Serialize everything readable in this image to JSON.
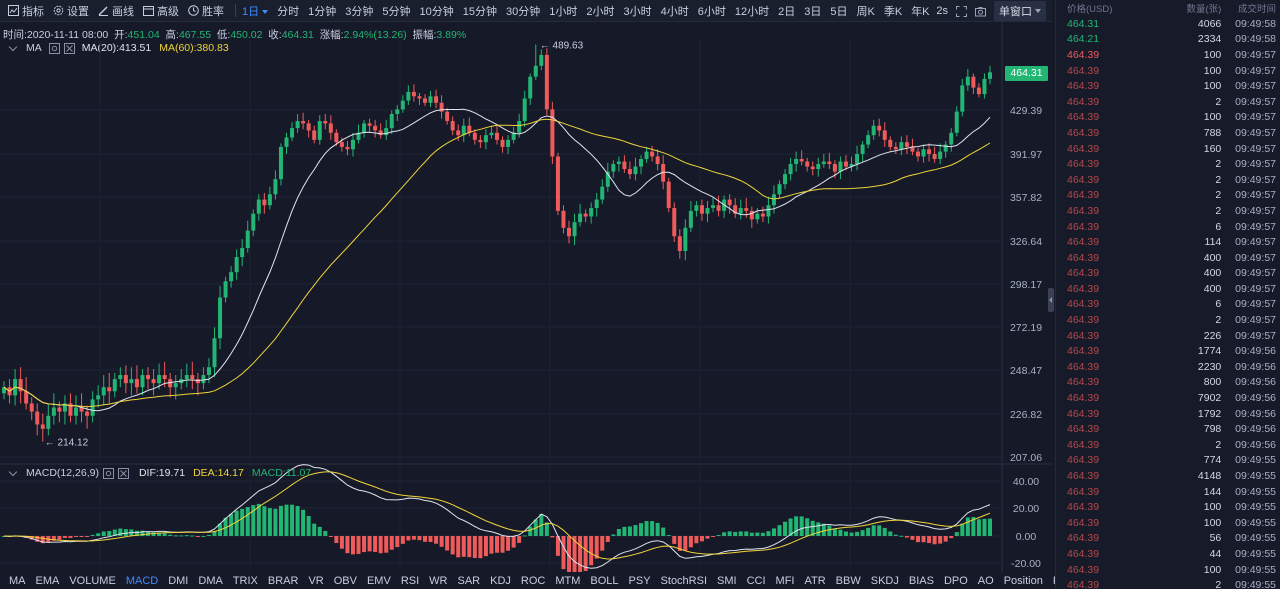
{
  "toolbar": {
    "tools": [
      {
        "label": "指标",
        "icon": "indicator-icon"
      },
      {
        "label": "设置",
        "icon": "gear-icon"
      },
      {
        "label": "画线",
        "icon": "pencil-icon"
      },
      {
        "label": "高级",
        "icon": "advanced-chart-icon"
      },
      {
        "label": "胜率",
        "icon": "win-rate-icon"
      }
    ],
    "periods": [
      "1日",
      "分时",
      "1分钟",
      "3分钟",
      "5分钟",
      "10分钟",
      "15分钟",
      "30分钟",
      "1小时",
      "2小时",
      "3小时",
      "4小时",
      "6小时",
      "12小时",
      "2日",
      "3日",
      "5日",
      "周K",
      "季K",
      "年K"
    ],
    "active_period": "1日",
    "refresh_interval": "2s",
    "window_mode": "单窗口"
  },
  "info": {
    "time_label": "时间:",
    "time": "2020-11-11 08:00",
    "open_label": "开:",
    "open": "451.04",
    "high_label": "高:",
    "high": "467.55",
    "low_label": "低:",
    "low": "450.02",
    "close_label": "收:",
    "close": "464.31",
    "change_label": "涨幅:",
    "change": "2.94%(13.26)",
    "amplitude_label": "振幅:",
    "amplitude": "3.89%"
  },
  "ma_legend": {
    "name": "MA",
    "ma20": "MA(20):413.51",
    "ma60": "MA(60):380.83"
  },
  "macd_legend": {
    "name": "MACD(12,26,9)",
    "dif": "DIF:19.71",
    "dea": "DEA:14.17",
    "macd": "MACD:11.07"
  },
  "price_axis": [
    "464.31",
    "429.39",
    "391.97",
    "357.82",
    "326.64",
    "298.17",
    "272.19",
    "248.47",
    "226.82",
    "207.06"
  ],
  "current_price": "464.31",
  "macd_axis": [
    "40.00",
    "20.00",
    "0.00",
    "-20.00"
  ],
  "annotations": {
    "high": "489.63",
    "low": "214.12"
  },
  "indicator_tabs": [
    "MA",
    "EMA",
    "VOLUME",
    "MACD",
    "DMI",
    "DMA",
    "TRIX",
    "BRAR",
    "VR",
    "OBV",
    "EMV",
    "RSI",
    "WR",
    "SAR",
    "KDJ",
    "ROC",
    "MTM",
    "BOLL",
    "PSY",
    "StochRSI",
    "SMI",
    "CCI",
    "MFI",
    "ATR",
    "BBW",
    "SKDJ",
    "BIAS",
    "DPO",
    "AO",
    "Position",
    "Fundflow"
  ],
  "active_indicator": "MACD",
  "colors": {
    "up": "#22b573",
    "down": "#ef5a5a",
    "ma20": "#e1e4ee",
    "ma60": "#f0d43a",
    "accent": "#3d8bff",
    "bg": "#161a28"
  },
  "trades": {
    "headers": {
      "price": "价格(USD)",
      "qty": "数量(张)",
      "time": "成交时间"
    },
    "rows": [
      {
        "price": "464.31",
        "qty": "4066",
        "time": "09:49:58",
        "side": "up"
      },
      {
        "price": "464.21",
        "qty": "2334",
        "time": "09:49:58",
        "side": "up"
      },
      {
        "price": "464.39",
        "qty": "100",
        "time": "09:49:57",
        "side": "down"
      },
      {
        "price": "464.39",
        "qty": "100",
        "time": "09:49:57",
        "side": "down"
      },
      {
        "price": "464.39",
        "qty": "100",
        "time": "09:49:57",
        "side": "down"
      },
      {
        "price": "464.39",
        "qty": "2",
        "time": "09:49:57",
        "side": "down"
      },
      {
        "price": "464.39",
        "qty": "100",
        "time": "09:49:57",
        "side": "down"
      },
      {
        "price": "464.39",
        "qty": "788",
        "time": "09:49:57",
        "side": "down"
      },
      {
        "price": "464.39",
        "qty": "160",
        "time": "09:49:57",
        "side": "down"
      },
      {
        "price": "464.39",
        "qty": "2",
        "time": "09:49:57",
        "side": "down"
      },
      {
        "price": "464.39",
        "qty": "2",
        "time": "09:49:57",
        "side": "down"
      },
      {
        "price": "464.39",
        "qty": "2",
        "time": "09:49:57",
        "side": "down"
      },
      {
        "price": "464.39",
        "qty": "2",
        "time": "09:49:57",
        "side": "down"
      },
      {
        "price": "464.39",
        "qty": "6",
        "time": "09:49:57",
        "side": "down"
      },
      {
        "price": "464.39",
        "qty": "114",
        "time": "09:49:57",
        "side": "down"
      },
      {
        "price": "464.39",
        "qty": "400",
        "time": "09:49:57",
        "side": "down"
      },
      {
        "price": "464.39",
        "qty": "400",
        "time": "09:49:57",
        "side": "down"
      },
      {
        "price": "464.39",
        "qty": "400",
        "time": "09:49:57",
        "side": "down"
      },
      {
        "price": "464.39",
        "qty": "6",
        "time": "09:49:57",
        "side": "down"
      },
      {
        "price": "464.39",
        "qty": "2",
        "time": "09:49:57",
        "side": "down"
      },
      {
        "price": "464.39",
        "qty": "226",
        "time": "09:49:57",
        "side": "down"
      },
      {
        "price": "464.39",
        "qty": "1774",
        "time": "09:49:56",
        "side": "down"
      },
      {
        "price": "464.39",
        "qty": "2230",
        "time": "09:49:56",
        "side": "down"
      },
      {
        "price": "464.39",
        "qty": "800",
        "time": "09:49:56",
        "side": "down"
      },
      {
        "price": "464.39",
        "qty": "7902",
        "time": "09:49:56",
        "side": "down"
      },
      {
        "price": "464.39",
        "qty": "1792",
        "time": "09:49:56",
        "side": "down"
      },
      {
        "price": "464.39",
        "qty": "798",
        "time": "09:49:56",
        "side": "down"
      },
      {
        "price": "464.39",
        "qty": "2",
        "time": "09:49:56",
        "side": "down"
      },
      {
        "price": "464.39",
        "qty": "774",
        "time": "09:49:55",
        "side": "down"
      },
      {
        "price": "464.39",
        "qty": "4148",
        "time": "09:49:55",
        "side": "down"
      },
      {
        "price": "464.39",
        "qty": "144",
        "time": "09:49:55",
        "side": "down"
      },
      {
        "price": "464.39",
        "qty": "100",
        "time": "09:49:55",
        "side": "down"
      },
      {
        "price": "464.39",
        "qty": "100",
        "time": "09:49:55",
        "side": "down"
      },
      {
        "price": "464.39",
        "qty": "56",
        "time": "09:49:55",
        "side": "down"
      },
      {
        "price": "464.39",
        "qty": "44",
        "time": "09:49:55",
        "side": "down"
      },
      {
        "price": "464.39",
        "qty": "100",
        "time": "09:49:55",
        "side": "down"
      },
      {
        "price": "464.39",
        "qty": "2",
        "time": "09:49:55",
        "side": "down"
      }
    ]
  }
}
